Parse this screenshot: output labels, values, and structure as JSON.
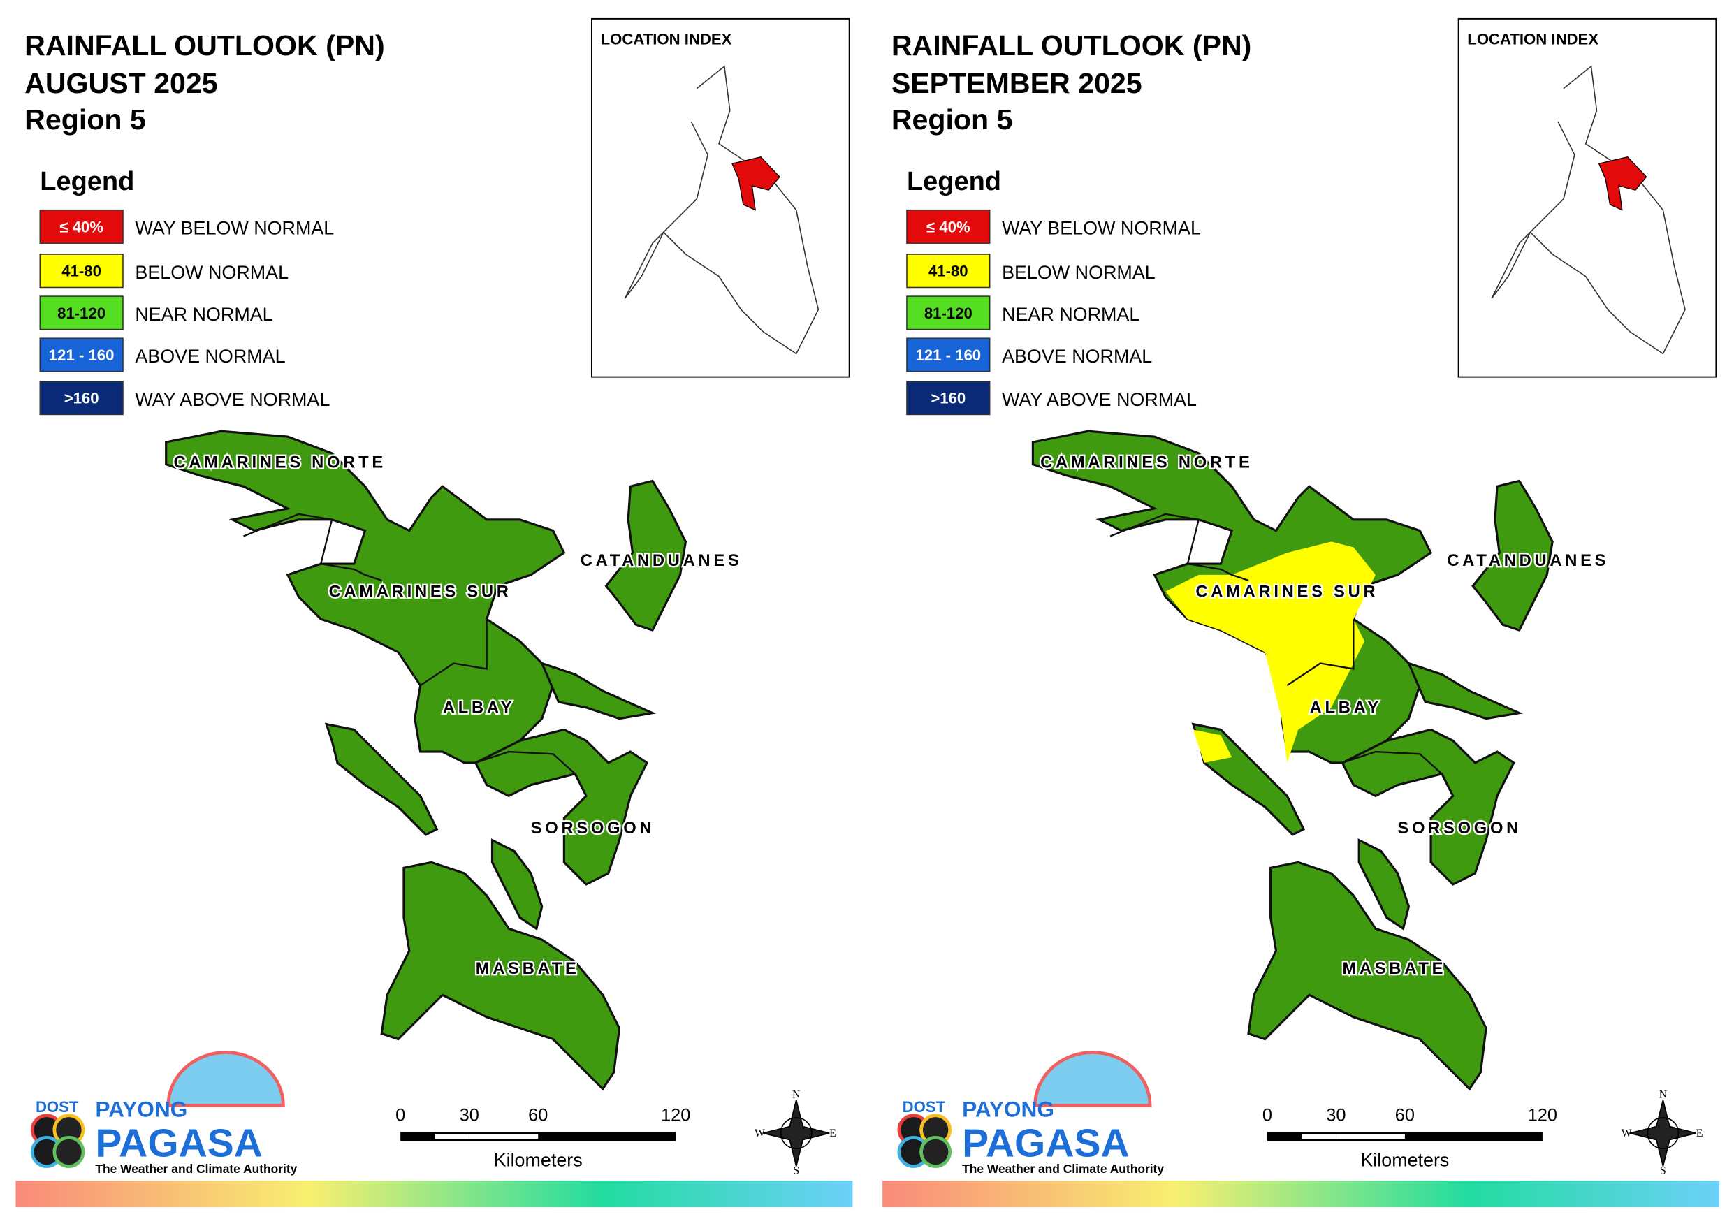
{
  "panels": [
    {
      "title": [
        "RAINFALL OUTLOOK (PN)",
        "AUGUST 2025",
        "Region 5"
      ],
      "legend_title": "Legend",
      "legend": [
        {
          "range": "≤ 40%",
          "label": "WAY BELOW NORMAL",
          "color": "#e20a0a",
          "text_color": "#ffffff"
        },
        {
          "range": "41-80",
          "label": "BELOW NORMAL",
          "color": "#ffff00",
          "text_color": "#000000"
        },
        {
          "range": "81-120",
          "label": "NEAR NORMAL",
          "color": "#55dd22",
          "text_color": "#000000"
        },
        {
          "range": "121 - 160",
          "label": "ABOVE NORMAL",
          "color": "#1764d8",
          "text_color": "#ffffff"
        },
        {
          "range": ">160",
          "label": "WAY ABOVE NORMAL",
          "color": "#0a2a78",
          "text_color": "#ffffff"
        }
      ],
      "location_index": "LOCATION INDEX",
      "provinces": [
        "CAMARINES NORTE",
        "CAMARINES SUR",
        "CATANDUANES",
        "ALBAY",
        "SORSOGON",
        "MASBATE"
      ],
      "map_color": "#3f9a0f",
      "scale": {
        "ticks": [
          0,
          30,
          60,
          120
        ],
        "unit": "Kilometers"
      },
      "compass": [
        "N",
        "E",
        "S",
        "W"
      ],
      "logo": {
        "agency": "DOST",
        "name_top": "PAYONG",
        "name": "PAGASA",
        "tagline": "The Weather and Climate Authority"
      }
    },
    {
      "title": [
        "RAINFALL OUTLOOK (PN)",
        "SEPTEMBER 2025",
        "Region 5"
      ],
      "legend_title": "Legend",
      "legend": [
        {
          "range": "≤ 40%",
          "label": "WAY BELOW NORMAL",
          "color": "#e20a0a",
          "text_color": "#ffffff"
        },
        {
          "range": "41-80",
          "label": "BELOW NORMAL",
          "color": "#ffff00",
          "text_color": "#000000"
        },
        {
          "range": "81-120",
          "label": "NEAR NORMAL",
          "color": "#55dd22",
          "text_color": "#000000"
        },
        {
          "range": "121 - 160",
          "label": "ABOVE NORMAL",
          "color": "#1764d8",
          "text_color": "#ffffff"
        },
        {
          "range": ">160",
          "label": "WAY ABOVE NORMAL",
          "color": "#0a2a78",
          "text_color": "#ffffff"
        }
      ],
      "location_index": "LOCATION INDEX",
      "provinces": [
        "CAMARINES NORTE",
        "CAMARINES SUR",
        "CATANDUANES",
        "ALBAY",
        "SORSOGON",
        "MASBATE"
      ],
      "map_color": "#3f9a0f",
      "overlay_color": "#ffff00",
      "scale": {
        "ticks": [
          0,
          30,
          60,
          120
        ],
        "unit": "Kilometers"
      },
      "compass": [
        "N",
        "E",
        "S",
        "W"
      ],
      "logo": {
        "agency": "DOST",
        "name_top": "PAYONG",
        "name": "PAGASA",
        "tagline": "The Weather and Climate Authority"
      }
    }
  ]
}
